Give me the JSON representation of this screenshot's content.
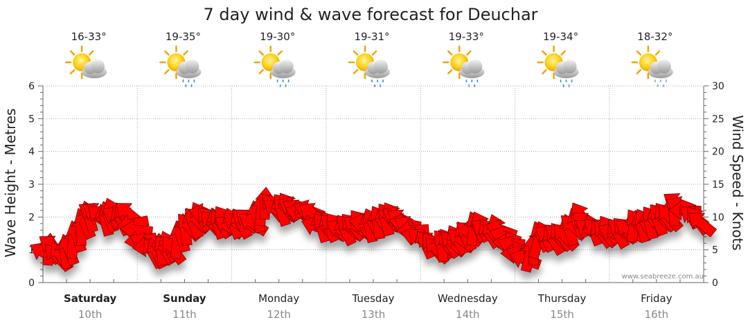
{
  "chart_data": {
    "type": "line",
    "title": "7 day wind & wave forecast for Deuchar",
    "left_axis": {
      "label": "Wave Height - Metres",
      "range": [
        0,
        6
      ],
      "ticks": [
        "0",
        "1",
        "2",
        "3",
        "4",
        "5",
        "6"
      ]
    },
    "right_axis": {
      "label": "Wind Speed - Knots",
      "range": [
        0,
        30
      ],
      "ticks": [
        "0",
        "5",
        "10",
        "15",
        "20",
        "25",
        "30"
      ]
    },
    "days": [
      {
        "name": "Saturday",
        "date": "10th",
        "temp": "16-33°",
        "weather": "sun-cloud-icon",
        "bold": true
      },
      {
        "name": "Sunday",
        "date": "11th",
        "temp": "19-35°",
        "weather": "sun-rain-icon",
        "bold": true
      },
      {
        "name": "Monday",
        "date": "12th",
        "temp": "19-30°",
        "weather": "sun-rain-icon",
        "bold": false
      },
      {
        "name": "Tuesday",
        "date": "13th",
        "temp": "19-31°",
        "weather": "sun-rain-icon",
        "bold": false
      },
      {
        "name": "Wednesday",
        "date": "14th",
        "temp": "19-33°",
        "weather": "sun-rain-icon",
        "bold": false
      },
      {
        "name": "Thursday",
        "date": "15th",
        "temp": "19-34°",
        "weather": "sun-rain-icon",
        "bold": false
      },
      {
        "name": "Friday",
        "date": "16th",
        "temp": "18-32°",
        "weather": "sun-cloud-light-rain-icon",
        "bold": false
      }
    ],
    "wind_series": {
      "name": "Wind Speed",
      "unit": "knots",
      "values": [
        4.5,
        5,
        5.5,
        4,
        4,
        4.5,
        5,
        6,
        7,
        8,
        9,
        10,
        10.5,
        10.5,
        10,
        9.5,
        10,
        10.5,
        10,
        9.5,
        10,
        10.5,
        9,
        8,
        6.5,
        6,
        5.5,
        4.5,
        4.5,
        5,
        5,
        5.5,
        5,
        6,
        7,
        8,
        8.5,
        9,
        9.5,
        10,
        10.5,
        9.5,
        9,
        9,
        9,
        9.5,
        8.5,
        9,
        9,
        9,
        9.5,
        9.5,
        9,
        10,
        11,
        12,
        12,
        11.5,
        11,
        11,
        11.5,
        11.5,
        11.5,
        11,
        10.5,
        10.5,
        11,
        10.5,
        8.5,
        8.5,
        8.5,
        8.5,
        8.5,
        8.5,
        8,
        8,
        8.5,
        8.5,
        8.5,
        9,
        9,
        8.5,
        9,
        9,
        9.5,
        9.5,
        10,
        10,
        10,
        9.5,
        9,
        8.5,
        8,
        7,
        6.5,
        6,
        6,
        5.5,
        5,
        5.5,
        6,
        6,
        6,
        6.5,
        6.5,
        7,
        7.5,
        8,
        8.5,
        8.5,
        8,
        7.5,
        7.5,
        8,
        8,
        7,
        6,
        5.5,
        4.5,
        4,
        3.5,
        4,
        5,
        6,
        7,
        7,
        7,
        6.5,
        7,
        7,
        7,
        8,
        8.5,
        9,
        10,
        9,
        8,
        8,
        8,
        7.5,
        7.5,
        8,
        7.5,
        7.5,
        8,
        8,
        8,
        8.5,
        9,
        8.5,
        9,
        9,
        9.5,
        9.5,
        10,
        10,
        10,
        11,
        12,
        11.5,
        11,
        10.5,
        10,
        9.5,
        9
      ]
    },
    "highlight_markers": [
      {
        "index": 56,
        "color": "#ffff00"
      }
    ],
    "credit": "www.seabreeze.com.au",
    "colors": {
      "arrow": "#ff0000",
      "highlight": "#ffff00",
      "grid": "#aaaaaa"
    }
  }
}
